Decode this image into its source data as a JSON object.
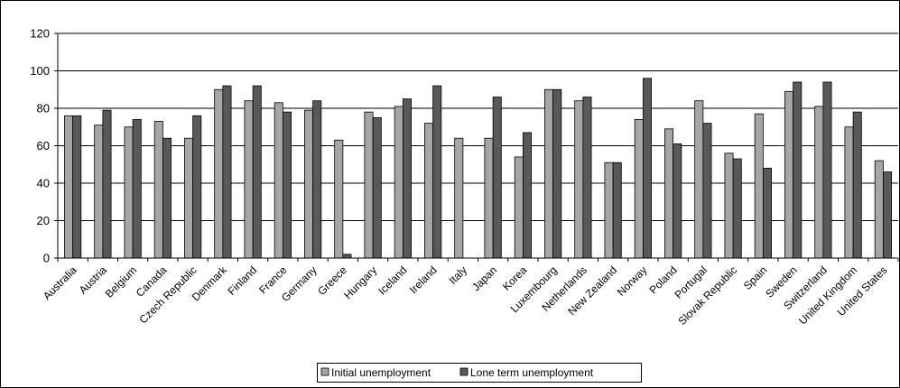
{
  "chart_data": {
    "type": "bar",
    "title": "",
    "xlabel": "",
    "ylabel": "",
    "ylim": [
      0,
      120
    ],
    "yticks": [
      0,
      20,
      40,
      60,
      80,
      100,
      120
    ],
    "grid": true,
    "legend_position": "bottom",
    "categories": [
      "Australia",
      "Austria",
      "Belgium",
      "Canada",
      "Czech Republic",
      "Denmark",
      "Finland",
      "France",
      "Germany",
      "Greece",
      "Hungary",
      "Iceland",
      "Ireland",
      "Italy",
      "Japan",
      "Korea",
      "Luxembourg",
      "Netherlands",
      "New Zealand",
      "Norway",
      "Poland",
      "Portugal",
      "Slovak Republic",
      "Spain",
      "Sweden",
      "Switzerland",
      "United Kingdom",
      "United States"
    ],
    "series": [
      {
        "name": "Initial unemployment",
        "color": "#a6a6a6",
        "values": [
          76,
          71,
          70,
          73,
          64,
          90,
          84,
          83,
          79,
          63,
          78,
          81,
          72,
          64,
          64,
          54,
          90,
          84,
          51,
          74,
          69,
          84,
          56,
          77,
          89,
          81,
          70,
          52
        ]
      },
      {
        "name": "Lone term unemployment",
        "color": "#595959",
        "values": [
          76,
          79,
          74,
          64,
          76,
          92,
          92,
          78,
          84,
          2,
          75,
          85,
          92,
          null,
          86,
          67,
          90,
          86,
          51,
          96,
          61,
          72,
          53,
          48,
          94,
          94,
          78,
          46
        ]
      }
    ]
  }
}
